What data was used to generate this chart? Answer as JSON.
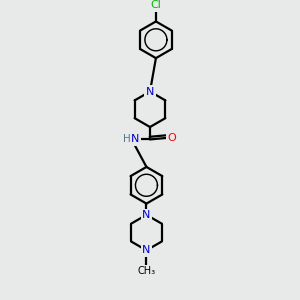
{
  "bg_color": "#e8eaea",
  "atom_colors": {
    "C": "#000000",
    "N": "#0000cc",
    "O": "#ff0000",
    "Cl": "#00bb00",
    "H": "#557788"
  },
  "bond_color": "#000000",
  "bond_width": 1.6,
  "fig_w": 3.0,
  "fig_h": 3.0,
  "dpi": 100,
  "xlim": [
    0,
    6
  ],
  "ylim": [
    0,
    10
  ]
}
